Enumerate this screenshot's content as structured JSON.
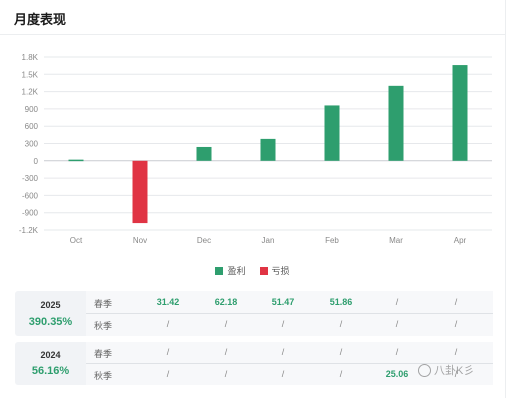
{
  "header": {
    "title": "月度表现"
  },
  "chart_data": {
    "type": "bar",
    "categories": [
      "Oct",
      "Nov",
      "Dec",
      "Jan",
      "Feb",
      "Mar",
      "Apr"
    ],
    "values": [
      20,
      -1080,
      240,
      380,
      960,
      1300,
      1660
    ],
    "yticks": [
      1800,
      1500,
      1200,
      900,
      600,
      300,
      0,
      -300,
      -600,
      -900,
      -1200
    ],
    "ytick_labels": [
      "1.8K",
      "1.5K",
      "1.2K",
      "900",
      "600",
      "300",
      "0",
      "-300",
      "-600",
      "-900",
      "-1.2K"
    ],
    "ylim": [
      -1200,
      1800
    ],
    "grid": true,
    "legend_position": "bottom",
    "legend": [
      {
        "label": "盈利",
        "color": "#2e9e6e"
      },
      {
        "label": "亏损",
        "color": "#e03444"
      }
    ],
    "colors": {
      "profit": "#2e9e6e",
      "loss": "#e03444"
    }
  },
  "summary": [
    {
      "year": "2025",
      "pct": "390.35%",
      "rows": [
        {
          "label": "春季",
          "cells": [
            "31.42",
            "62.18",
            "51.47",
            "51.86",
            "/",
            "/"
          ]
        },
        {
          "label": "秋季",
          "cells": [
            "/",
            "/",
            "/",
            "/",
            "/",
            "/"
          ]
        }
      ]
    },
    {
      "year": "2024",
      "pct": "56.16%",
      "rows": [
        {
          "label": "春季",
          "cells": [
            "/",
            "/",
            "/",
            "/",
            "/",
            "/"
          ]
        },
        {
          "label": "秋季",
          "cells": [
            "/",
            "/",
            "/",
            "/",
            "25.06",
            "/"
          ]
        }
      ]
    }
  ],
  "watermark": "八卦K彡"
}
